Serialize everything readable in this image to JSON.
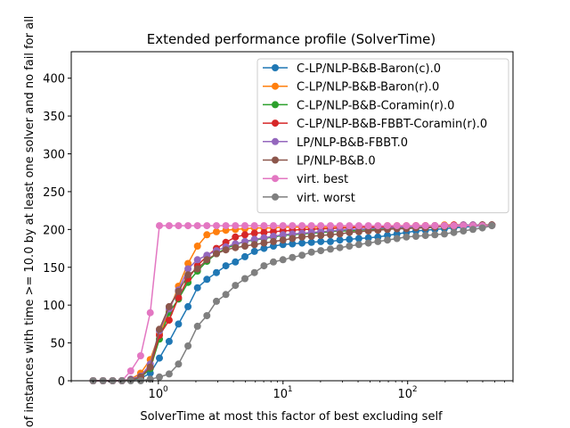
{
  "chart_data": {
    "type": "line",
    "title": "Extended performance profile (SolverTime)",
    "xlabel": "SolverTime at most this factor of best excluding self",
    "ylabel": "# of instances with time >= 10.0 by at least one solver and no fail for all",
    "xscale": "log",
    "xlim": [
      0.2,
      700
    ],
    "ylim": [
      0,
      435
    ],
    "yticks": [
      0,
      50,
      100,
      150,
      200,
      250,
      300,
      350,
      400
    ],
    "xticks": [
      1,
      10,
      100
    ],
    "xtick_labels": [
      [
        "10",
        "0"
      ],
      [
        "10",
        "1"
      ],
      [
        "10",
        "2"
      ]
    ],
    "grid": false,
    "legend_position": "top-right",
    "x": [
      0.3,
      0.36,
      0.43,
      0.51,
      0.6,
      0.72,
      0.86,
      1.02,
      1.22,
      1.45,
      1.73,
      2.06,
      2.45,
      2.92,
      3.48,
      4.15,
      4.95,
      5.9,
      7.03,
      8.38,
      9.99,
      11.9,
      14.2,
      16.9,
      20.1,
      24.0,
      28.6,
      34.1,
      40.6,
      48.4,
      57.7,
      68.8,
      82.0,
      97.7,
      116.5,
      138.8,
      165.4,
      197.1,
      234.9,
      280.0,
      333.7,
      397.7,
      474.0
    ],
    "series": [
      {
        "name": "C-LP/NLP-B&B-Baron(c).0",
        "color": "#1f77b4",
        "values": [
          0,
          0,
          0,
          0,
          1,
          3,
          10,
          30,
          52,
          75,
          98,
          123,
          134,
          143,
          152,
          157,
          164,
          171,
          175,
          178,
          180,
          181,
          182,
          183,
          184,
          184,
          186,
          187,
          188,
          189,
          190,
          192,
          194,
          196,
          198,
          199,
          200,
          201,
          202,
          203,
          204,
          205,
          206
        ]
      },
      {
        "name": "C-LP/NLP-B&B-Baron(r).0",
        "color": "#ff7f0e",
        "values": [
          0,
          0,
          0,
          0,
          2,
          10,
          28,
          62,
          92,
          125,
          155,
          178,
          193,
          197,
          199,
          200,
          201,
          202,
          202,
          202,
          203,
          203,
          203,
          203,
          203,
          203,
          204,
          204,
          204,
          204,
          204,
          205,
          205,
          205,
          205,
          205,
          205,
          206,
          206,
          206,
          206,
          206,
          206
        ]
      },
      {
        "name": "C-LP/NLP-B&B-Coramin(r).0",
        "color": "#2ca02c",
        "values": [
          0,
          0,
          0,
          0,
          1,
          4,
          16,
          55,
          90,
          108,
          130,
          145,
          158,
          168,
          175,
          180,
          184,
          186,
          188,
          190,
          192,
          193,
          194,
          195,
          196,
          197,
          198,
          198,
          199,
          200,
          200,
          201,
          202,
          202,
          203,
          203,
          204,
          204,
          205,
          205,
          205,
          206,
          206
        ]
      },
      {
        "name": "C-LP/NLP-B&B-FBBT-Coramin(r).0",
        "color": "#d62728",
        "values": [
          0,
          0,
          0,
          0,
          1,
          5,
          18,
          60,
          80,
          110,
          135,
          152,
          165,
          175,
          183,
          190,
          193,
          195,
          196,
          197,
          198,
          199,
          200,
          200,
          201,
          201,
          202,
          202,
          203,
          203,
          203,
          204,
          204,
          204,
          205,
          205,
          205,
          205,
          206,
          206,
          206,
          206,
          206
        ]
      },
      {
        "name": "LP/NLP-B&B-FBBT.0",
        "color": "#9467bd",
        "values": [
          0,
          0,
          0,
          0,
          2,
          6,
          22,
          66,
          95,
          120,
          148,
          160,
          166,
          172,
          177,
          181,
          184,
          187,
          189,
          191,
          193,
          194,
          195,
          196,
          197,
          198,
          199,
          200,
          200,
          201,
          202,
          202,
          203,
          203,
          204,
          204,
          205,
          205,
          205,
          206,
          206,
          206,
          206
        ]
      },
      {
        "name": "LP/NLP-B&B.0",
        "color": "#8c564b",
        "values": [
          0,
          0,
          0,
          0,
          1,
          5,
          18,
          68,
          98,
          118,
          140,
          148,
          160,
          168,
          173,
          176,
          178,
          180,
          182,
          184,
          186,
          188,
          190,
          191,
          192,
          193,
          194,
          196,
          197,
          198,
          199,
          200,
          201,
          201,
          202,
          202,
          203,
          204,
          204,
          205,
          205,
          206,
          206
        ]
      },
      {
        "name": "virt. best",
        "color": "#e377c2",
        "values": [
          0,
          0,
          0,
          0,
          13,
          33,
          90,
          205,
          205,
          205,
          205,
          205,
          205,
          205,
          205,
          205,
          205,
          205,
          205,
          205,
          205,
          205,
          205,
          205,
          205,
          205,
          205,
          205,
          205,
          205,
          205,
          205,
          205,
          205,
          205,
          205,
          205,
          205,
          205,
          205,
          205,
          205,
          205
        ]
      },
      {
        "name": "virt. worst",
        "color": "#7f7f7f",
        "values": [
          0,
          0,
          0,
          0,
          0,
          0,
          2,
          5,
          9,
          22,
          46,
          72,
          86,
          105,
          114,
          126,
          135,
          143,
          152,
          157,
          160,
          163,
          166,
          170,
          172,
          174,
          176,
          178,
          180,
          182,
          184,
          186,
          188,
          190,
          191,
          192,
          193,
          194,
          196,
          198,
          200,
          202,
          205
        ]
      }
    ]
  }
}
